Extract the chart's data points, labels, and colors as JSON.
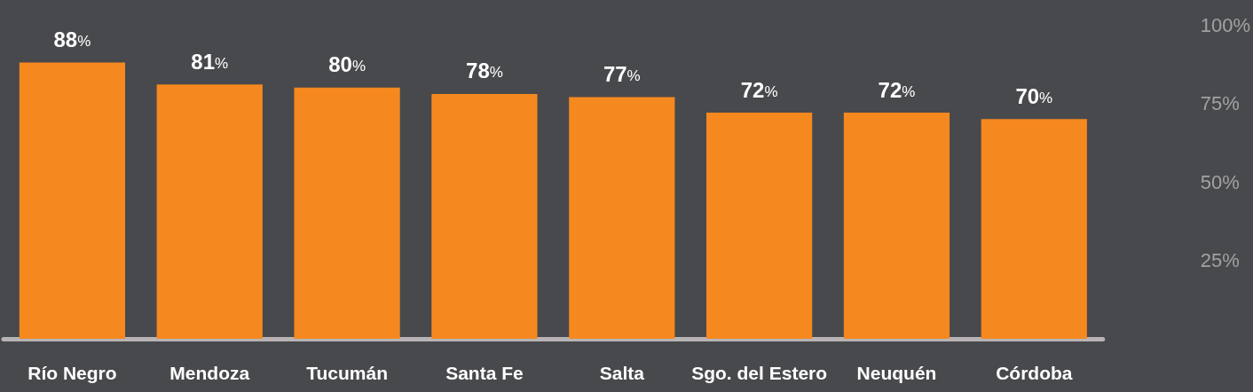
{
  "chart_data": {
    "type": "bar",
    "categories": [
      "Río Negro",
      "Mendoza",
      "Tucumán",
      "Santa Fe",
      "Salta",
      "Sgo. del Estero",
      "Neuquén",
      "Córdoba"
    ],
    "values": [
      88,
      81,
      80,
      78,
      77,
      72,
      72,
      70
    ],
    "color": "#f5891f",
    "value_labels": [
      "88%",
      "81%",
      "80%",
      "78%",
      "77%",
      "72%",
      "72%",
      "70%"
    ],
    "ylim": [
      0,
      100
    ],
    "yticks": [
      {
        "value": 25,
        "label": "25%"
      },
      {
        "value": 50,
        "label": "50%"
      },
      {
        "value": 75,
        "label": "75%"
      },
      {
        "value": 100,
        "label": "100%"
      }
    ],
    "grid": false
  }
}
